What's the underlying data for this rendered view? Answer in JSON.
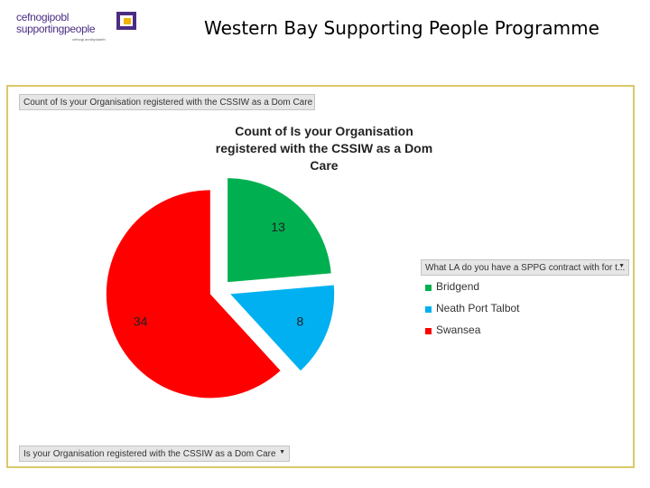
{
  "slide": {
    "title": "Western Bay Supporting People Programme"
  },
  "logo": {
    "line1": "cefnogipobl",
    "line2": "supportingpeople",
    "tagline": "cefnogi annibyniaeth"
  },
  "fields": {
    "top": "Count of Is your Organisation registered with the CSSIW as a Dom Care",
    "bottom": "Is your Organisation registered with the CSSIW as a Dom Care",
    "legend": "What LA do you have a SPPG contract with for t..."
  },
  "chart_data": {
    "type": "pie",
    "title": "Count of Is your Organisation registered with the CSSIW as a Dom Care",
    "categories": [
      "Bridgend",
      "Neath Port Talbot",
      "Swansea"
    ],
    "values": [
      13,
      8,
      34
    ],
    "colors": [
      "#00b050",
      "#00b0f0",
      "#ff0000"
    ],
    "exploded": true,
    "legend_position": "right"
  }
}
